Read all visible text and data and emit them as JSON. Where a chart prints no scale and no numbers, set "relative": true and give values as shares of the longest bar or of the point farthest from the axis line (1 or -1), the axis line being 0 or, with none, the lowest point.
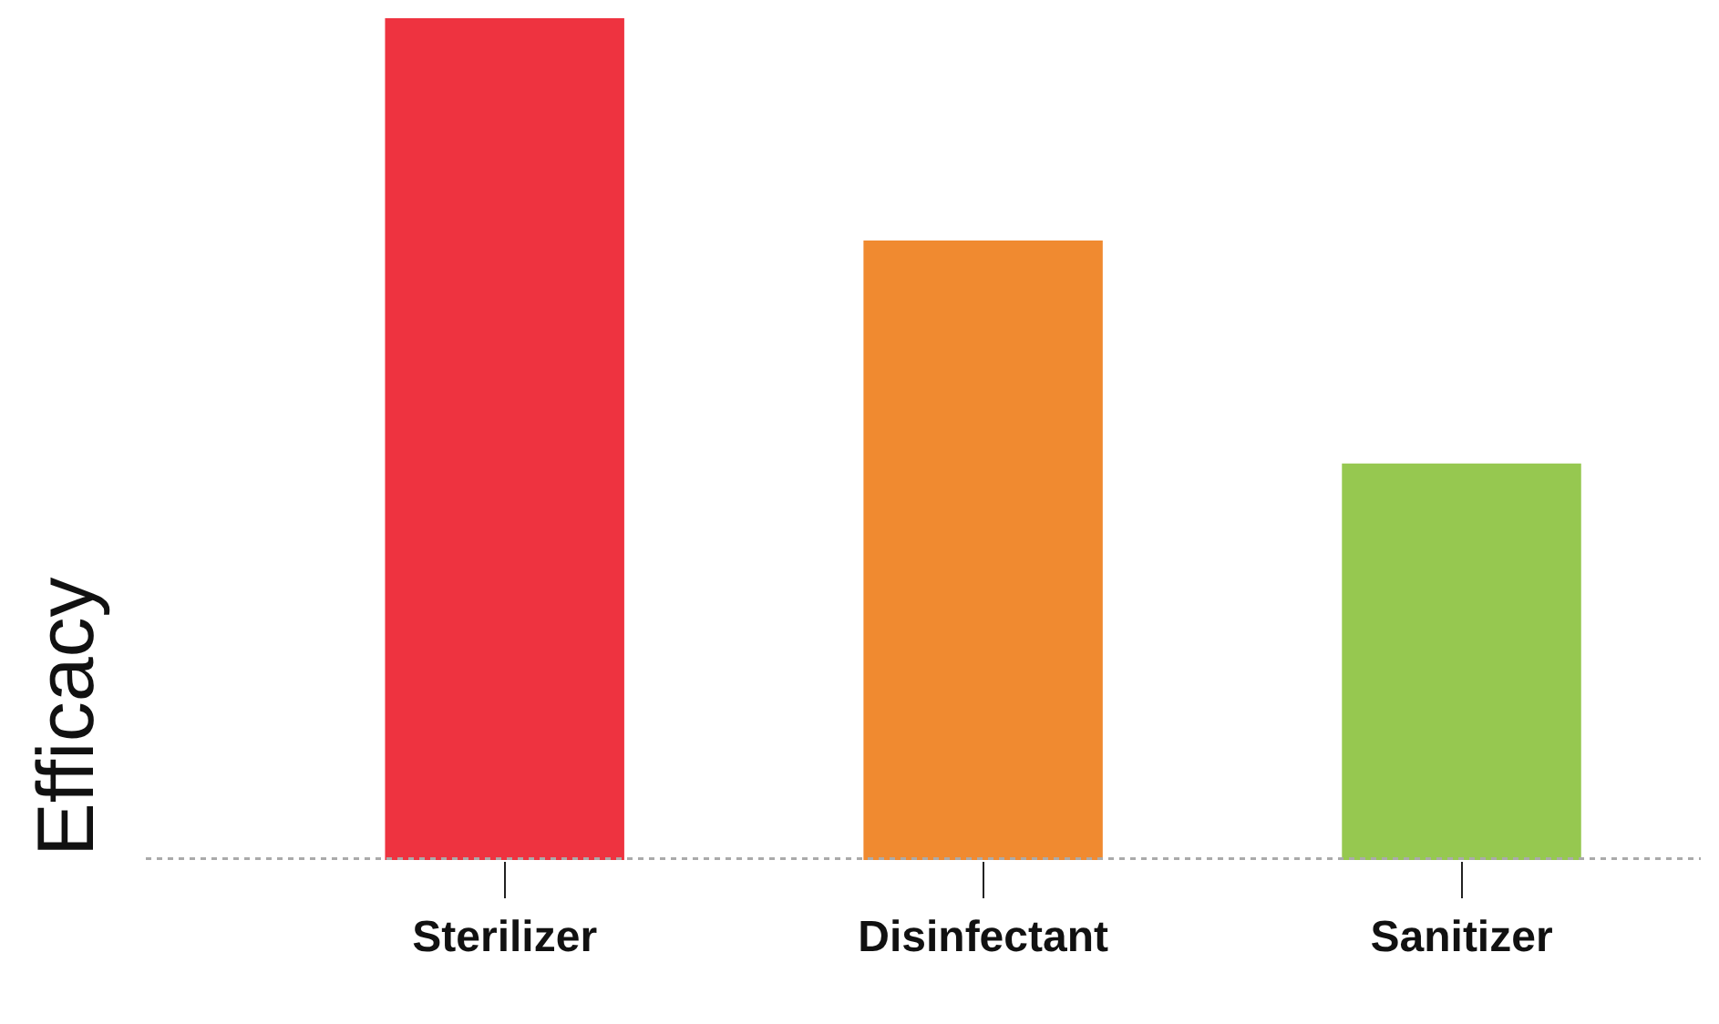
{
  "chart_data": {
    "type": "bar",
    "relative": true,
    "ylabel": "Efficacy",
    "categories": [
      "Sterilizer",
      "Disinfectant",
      "Sanitizer"
    ],
    "values": [
      1,
      0.736,
      0.471
    ],
    "colors": [
      "#ee3340",
      "#f08a30",
      "#96c850"
    ]
  }
}
